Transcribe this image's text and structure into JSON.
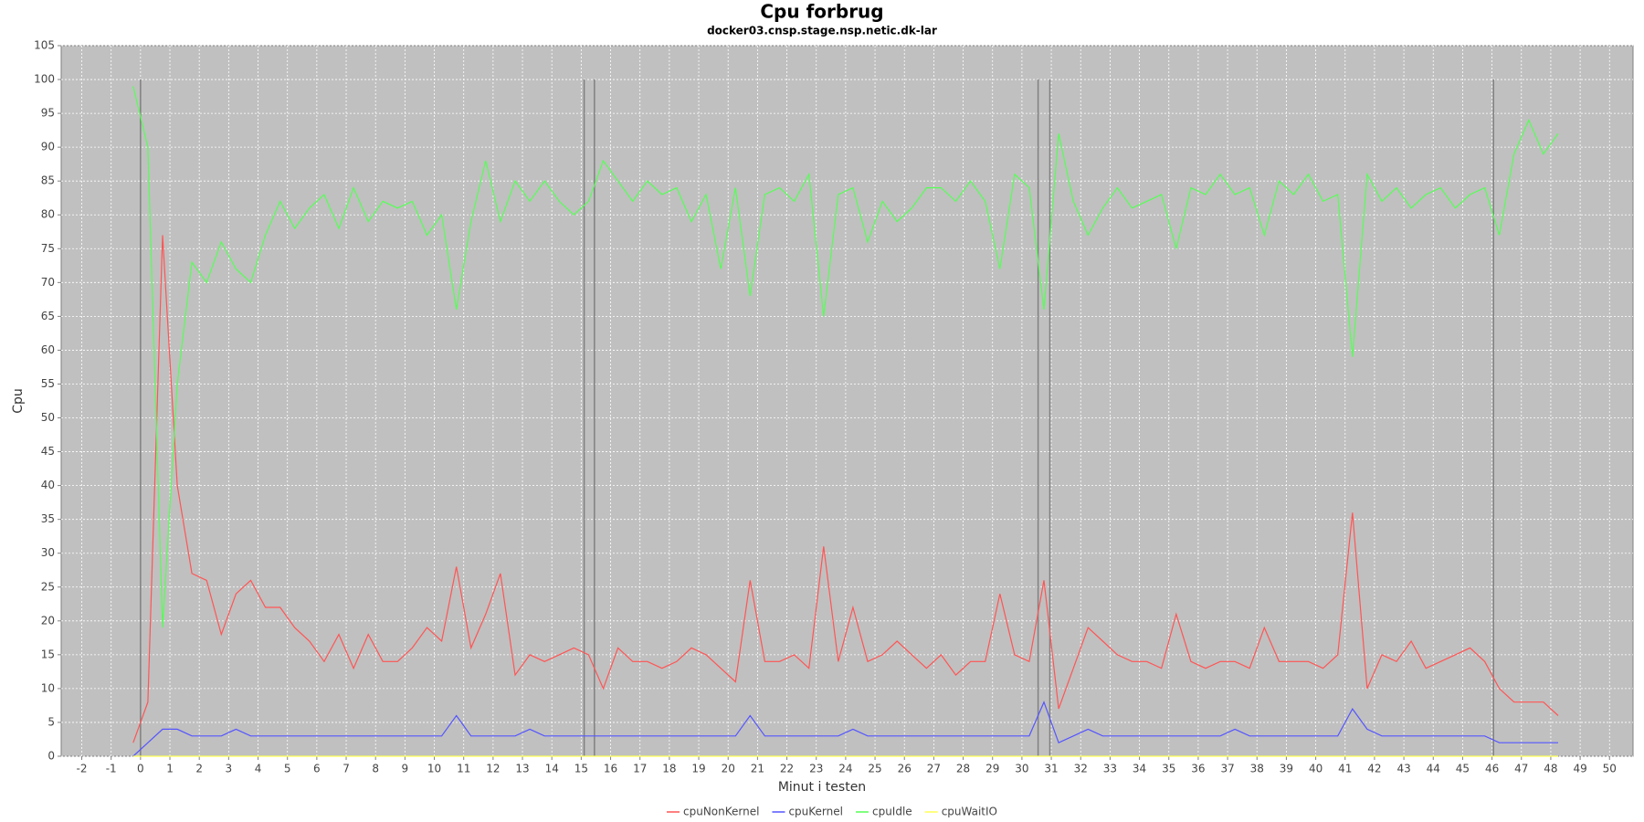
{
  "chart_data": {
    "type": "line",
    "title": "Cpu forbrug",
    "subtitle": "docker03.cnsp.stage.nsp.netic.dk-lar",
    "x_label": "Minut i testen",
    "y_label": "Cpu",
    "grid": true,
    "xlim": [
      -2.7,
      50.8
    ],
    "ylim": [
      0,
      105
    ],
    "xticks": [
      -2,
      -1,
      0,
      1,
      2,
      3,
      4,
      5,
      6,
      7,
      8,
      9,
      10,
      11,
      12,
      13,
      14,
      15,
      16,
      17,
      18,
      19,
      20,
      21,
      22,
      23,
      24,
      25,
      26,
      27,
      28,
      29,
      30,
      31,
      32,
      33,
      34,
      35,
      36,
      37,
      38,
      39,
      40,
      41,
      42,
      43,
      44,
      45,
      46,
      47,
      48,
      49,
      50
    ],
    "yticks": [
      0,
      5,
      10,
      15,
      20,
      25,
      30,
      35,
      40,
      45,
      50,
      55,
      60,
      65,
      70,
      75,
      80,
      85,
      90,
      95,
      100,
      105
    ],
    "markers": [
      0,
      15.1,
      15.45,
      30.55,
      30.95,
      46.05
    ],
    "marker_color": "#808080",
    "x": [
      -0.25,
      0.25,
      0.75,
      1.25,
      1.75,
      2.25,
      2.75,
      3.25,
      3.75,
      4.25,
      4.75,
      5.25,
      5.75,
      6.25,
      6.75,
      7.25,
      7.75,
      8.25,
      8.75,
      9.25,
      9.75,
      10.25,
      10.75,
      11.25,
      11.75,
      12.25,
      12.75,
      13.25,
      13.75,
      14.25,
      14.75,
      15.25,
      15.75,
      16.25,
      16.75,
      17.25,
      17.75,
      18.25,
      18.75,
      19.25,
      19.75,
      20.25,
      20.75,
      21.25,
      21.75,
      22.25,
      22.75,
      23.25,
      23.75,
      24.25,
      24.75,
      25.25,
      25.75,
      26.25,
      26.75,
      27.25,
      27.75,
      28.25,
      28.75,
      29.25,
      29.75,
      30.25,
      30.75,
      31.25,
      31.75,
      32.25,
      32.75,
      33.25,
      33.75,
      34.25,
      34.75,
      35.25,
      35.75,
      36.25,
      36.75,
      37.25,
      37.75,
      38.25,
      38.75,
      39.25,
      39.75,
      40.25,
      40.75,
      41.25,
      41.75,
      42.25,
      42.75,
      43.25,
      43.75,
      44.25,
      44.75,
      45.25,
      45.75,
      46.25,
      46.75,
      47.25,
      47.75,
      48.25
    ],
    "series": [
      {
        "name": "cpuNonKernel",
        "color": "#ff5555",
        "values": [
          2,
          8,
          77,
          40,
          27,
          26,
          18,
          24,
          26,
          22,
          22,
          19,
          17,
          14,
          18,
          13,
          18,
          14,
          14,
          16,
          19,
          17,
          28,
          16,
          21,
          27,
          12,
          15,
          14,
          15,
          16,
          15,
          10,
          16,
          14,
          14,
          13,
          14,
          16,
          15,
          13,
          11,
          26,
          14,
          14,
          15,
          13,
          31,
          14,
          22,
          14,
          15,
          17,
          15,
          13,
          15,
          12,
          14,
          14,
          24,
          15,
          14,
          26,
          7,
          13,
          19,
          17,
          15,
          14,
          14,
          13,
          21,
          14,
          13,
          14,
          14,
          13,
          19,
          14,
          14,
          14,
          13,
          15,
          36,
          10,
          15,
          14,
          17,
          13,
          14,
          15,
          16,
          14,
          10,
          8,
          8,
          8,
          6
        ]
      },
      {
        "name": "cpuKernel",
        "color": "#5555ff",
        "values": [
          0,
          2,
          4,
          4,
          3,
          3,
          3,
          4,
          3,
          3,
          3,
          3,
          3,
          3,
          3,
          3,
          3,
          3,
          3,
          3,
          3,
          3,
          6,
          3,
          3,
          3,
          3,
          4,
          3,
          3,
          3,
          3,
          3,
          3,
          3,
          3,
          3,
          3,
          3,
          3,
          3,
          3,
          6,
          3,
          3,
          3,
          3,
          3,
          3,
          4,
          3,
          3,
          3,
          3,
          3,
          3,
          3,
          3,
          3,
          3,
          3,
          3,
          8,
          2,
          3,
          4,
          3,
          3,
          3,
          3,
          3,
          3,
          3,
          3,
          3,
          4,
          3,
          3,
          3,
          3,
          3,
          3,
          3,
          7,
          4,
          3,
          3,
          3,
          3,
          3,
          3,
          3,
          3,
          2,
          2,
          2,
          2,
          2
        ]
      },
      {
        "name": "cpuIdle",
        "color": "#55ff55",
        "values": [
          99,
          90,
          19,
          55,
          73,
          70,
          76,
          72,
          70,
          77,
          82,
          78,
          81,
          83,
          78,
          84,
          79,
          82,
          81,
          82,
          77,
          80,
          66,
          79,
          88,
          79,
          85,
          82,
          85,
          82,
          80,
          82,
          88,
          85,
          82,
          85,
          83,
          84,
          79,
          83,
          72,
          84,
          68,
          83,
          84,
          82,
          86,
          65,
          83,
          84,
          76,
          82,
          79,
          81,
          84,
          84,
          82,
          85,
          82,
          72,
          86,
          84,
          66,
          92,
          82,
          77,
          81,
          84,
          81,
          82,
          83,
          75,
          84,
          83,
          86,
          83,
          84,
          77,
          85,
          83,
          86,
          82,
          83,
          59,
          86,
          82,
          84,
          81,
          83,
          84,
          81,
          83,
          84,
          77,
          89,
          94,
          89,
          92
        ]
      },
      {
        "name": "cpuWaitIO",
        "color": "#ffff55",
        "values": [
          0,
          0,
          0,
          0,
          0,
          0,
          0,
          0,
          0,
          0,
          0,
          0,
          0,
          0,
          0,
          0,
          0,
          0,
          0,
          0,
          0,
          0,
          0,
          0,
          0,
          0,
          0,
          0,
          0,
          0,
          0,
          0,
          0,
          0,
          0,
          0,
          0,
          0,
          0,
          0,
          0,
          0,
          0,
          0,
          0,
          0,
          0,
          0,
          0,
          0,
          0,
          0,
          0,
          0,
          0,
          0,
          0,
          0,
          0,
          0,
          0,
          0,
          0,
          0,
          0,
          0,
          0,
          0,
          0,
          0,
          0,
          0,
          0,
          0,
          0,
          0,
          0,
          0,
          0,
          0,
          0,
          0,
          0,
          0,
          0,
          0,
          0,
          0,
          0,
          0,
          0,
          0,
          0,
          0,
          0,
          0,
          0,
          0
        ]
      }
    ]
  }
}
